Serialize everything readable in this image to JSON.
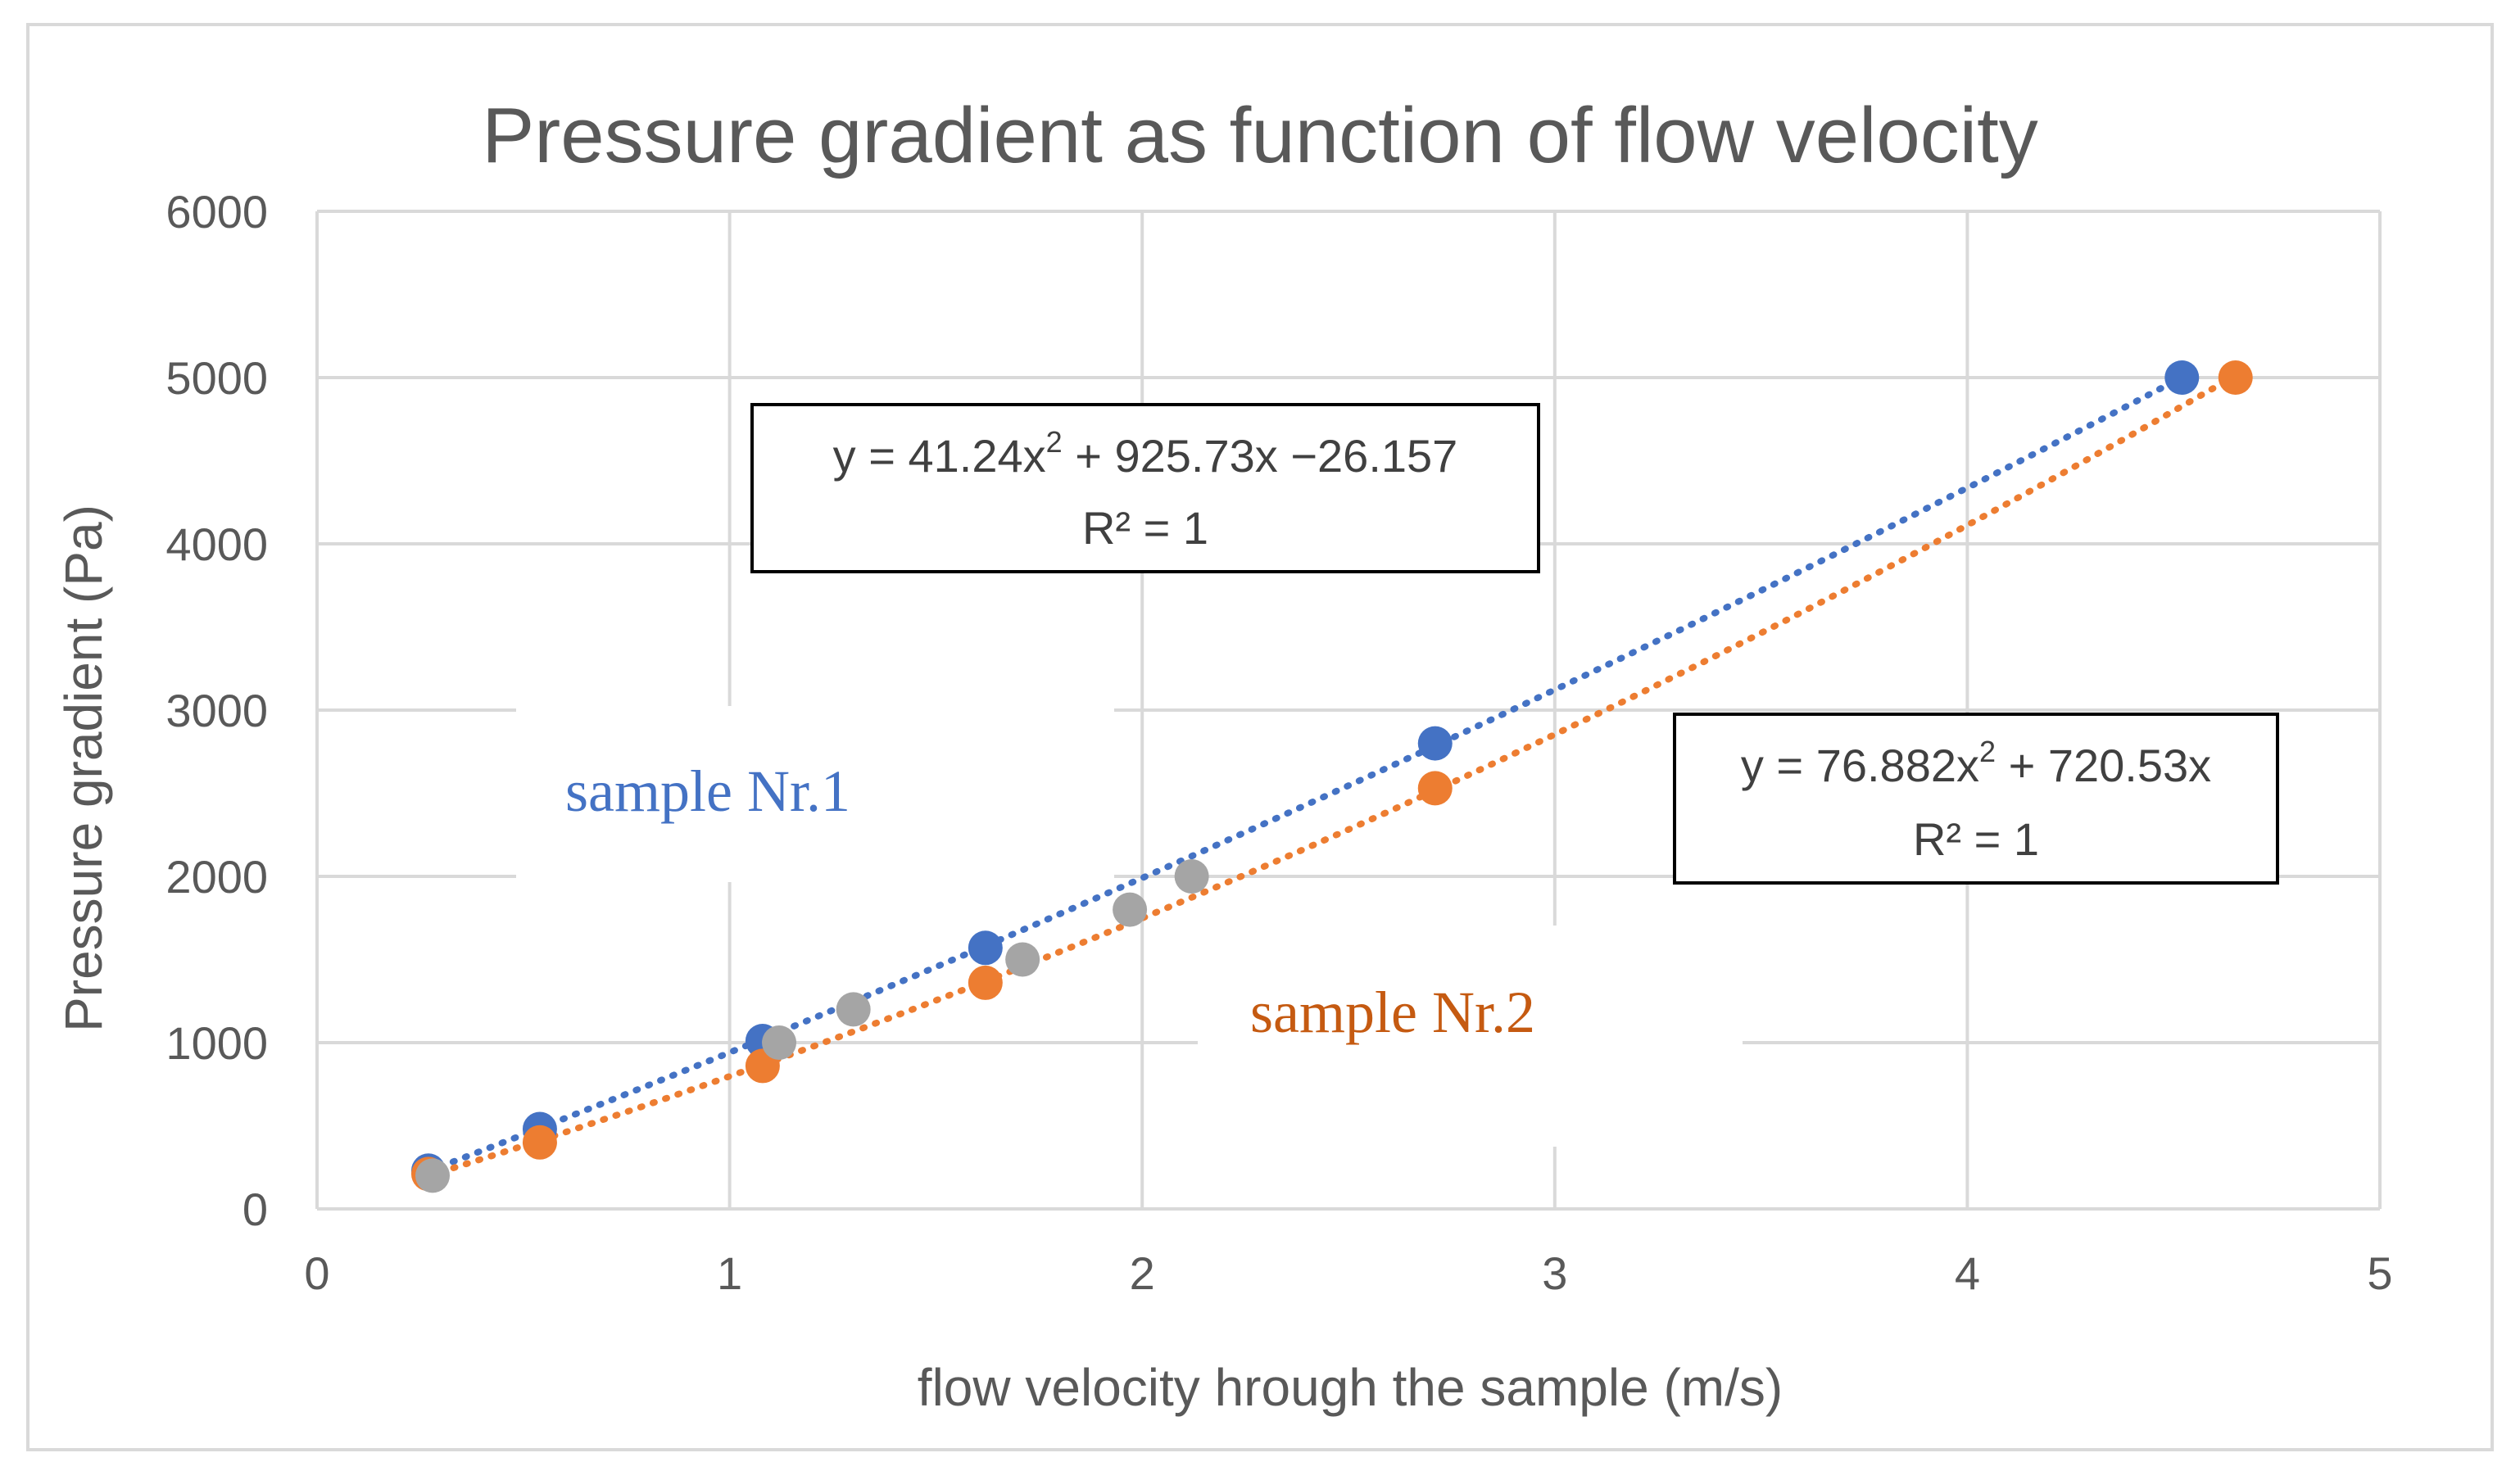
{
  "chart_data": {
    "type": "scatter",
    "title": "Pressure gradient as function of flow velocity",
    "xlabel": "flow velocity hrough the sample (m/s)",
    "ylabel": "Pressure gradient (Pa)",
    "xlim": [
      0,
      5
    ],
    "ylim": [
      0,
      6000
    ],
    "xticks": [
      0,
      1,
      2,
      3,
      4,
      5
    ],
    "yticks": [
      0,
      1000,
      2000,
      3000,
      4000,
      5000,
      6000
    ],
    "grid": true,
    "series": [
      {
        "name": "sample Nr.1",
        "color": "#4472C4",
        "x": [
          0.27,
          0.54,
          1.08,
          1.62,
          2.71,
          4.52
        ],
        "y": [
          230,
          480,
          1010,
          1570,
          2800,
          5000
        ],
        "trendline": {
          "type": "poly2",
          "a": 41.24,
          "b": 925.73,
          "c": -26.157
        }
      },
      {
        "name": "sample Nr.2",
        "color": "#ED7D31",
        "x": [
          0.27,
          0.54,
          1.08,
          1.62,
          2.71,
          4.65
        ],
        "y": [
          210,
          400,
          860,
          1360,
          2530,
          5000
        ],
        "trendline": {
          "type": "poly2",
          "a": 76.882,
          "b": 720.53,
          "c": 0
        }
      },
      {
        "name": "",
        "color": "#A5A5A5",
        "x": [
          0.28,
          1.12,
          1.3,
          1.71,
          1.97,
          2.12
        ],
        "y": [
          200,
          1000,
          1200,
          1500,
          1800,
          2000
        ]
      }
    ],
    "annotations": {
      "eq1_line1": "y = 41.24x",
      "eq1_line1_tail": " + 925.73x −26.157",
      "eq1_r2": "R² = 1",
      "eq2_line1": "y = 76.882x",
      "eq2_line1_tail": " + 720.53x",
      "eq2_r2": "R² = 1",
      "superscript": "2",
      "label1": "sample Nr.1",
      "label2": "sample Nr.2"
    }
  }
}
